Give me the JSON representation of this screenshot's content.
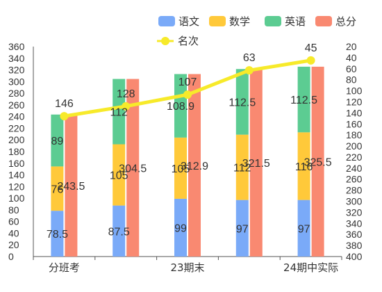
{
  "chart_data": {
    "type": "bar",
    "categories": [
      "分班考",
      "",
      "23期末",
      "",
      "24期中实际"
    ],
    "x_tick_labels_shown": [
      "分班考",
      "23期末",
      "24期中实际"
    ],
    "stacked_series": [
      {
        "name": "语文",
        "color": "#7aaaf8",
        "values": [
          78.5,
          87.5,
          99,
          97,
          97
        ]
      },
      {
        "name": "数学",
        "color": "#ffc93a",
        "values": [
          76,
          105,
          105,
          112,
          116
        ]
      },
      {
        "name": "英语",
        "color": "#5ccc92",
        "values": [
          89,
          112,
          108.9,
          112.5,
          112.5
        ]
      }
    ],
    "total_series": {
      "name": "总分",
      "color": "#f98971",
      "values": [
        243.5,
        304.5,
        312.9,
        321.5,
        325.5
      ]
    },
    "rank_series": {
      "name": "名次",
      "color": "#f7ea2a",
      "values": [
        146,
        128,
        107,
        63,
        45
      ]
    },
    "y_left": {
      "min": 0,
      "max": 360,
      "step": 20
    },
    "y_right": {
      "min": 20,
      "max": 400,
      "step": 20,
      "inverted": true
    },
    "legend": {
      "position": "top-right",
      "row1": [
        "语文",
        "数学",
        "英语",
        "总分"
      ],
      "row2": [
        "名次"
      ]
    }
  }
}
